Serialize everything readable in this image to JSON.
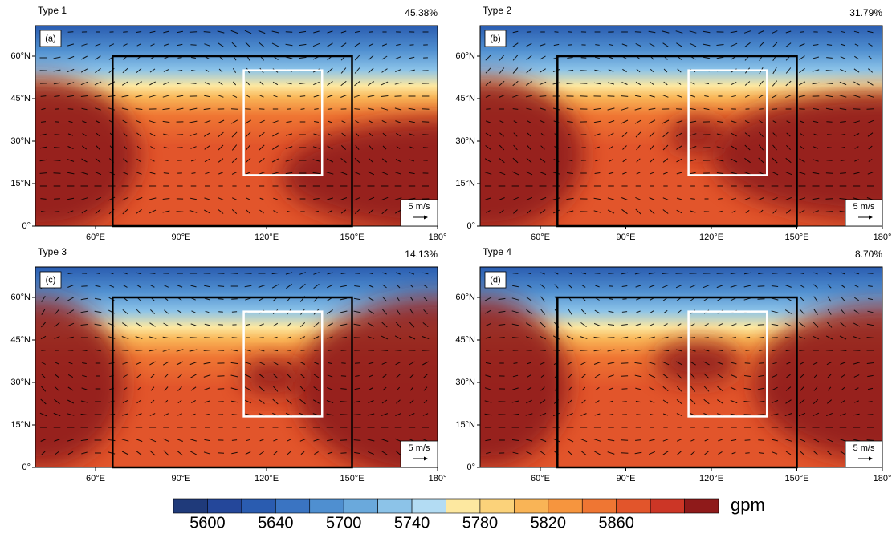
{
  "panels": [
    {
      "title": "Type 1",
      "percent": "45.38%",
      "label": "(a)"
    },
    {
      "title": "Type 2",
      "percent": "31.79%",
      "label": "(b)"
    },
    {
      "title": "Type 3",
      "percent": "14.13%",
      "label": "(c)"
    },
    {
      "title": "Type 4",
      "percent": "8.70%",
      "label": "(d)"
    }
  ],
  "lon_ticks": [
    "60°E",
    "90°E",
    "120°E",
    "150°E",
    "180°"
  ],
  "lat_ticks": [
    "60°N",
    "45°N",
    "30°N",
    "15°N",
    "0°"
  ],
  "vector_key": "5 m/s",
  "colorbar": {
    "colors": [
      "#1f3a7a",
      "#24479a",
      "#2a5cb0",
      "#3a74c2",
      "#4f8fd0",
      "#6aa9dc",
      "#8cc3e8",
      "#b3dcf3",
      "#fde8a0",
      "#fbd27a",
      "#f9b456",
      "#f6953e",
      "#ef7633",
      "#e2552b",
      "#cc3626",
      "#8f1a1a"
    ],
    "labels": [
      5600,
      5640,
      5700,
      5740,
      5780,
      5820,
      5860
    ],
    "unit": "gpm"
  }
}
